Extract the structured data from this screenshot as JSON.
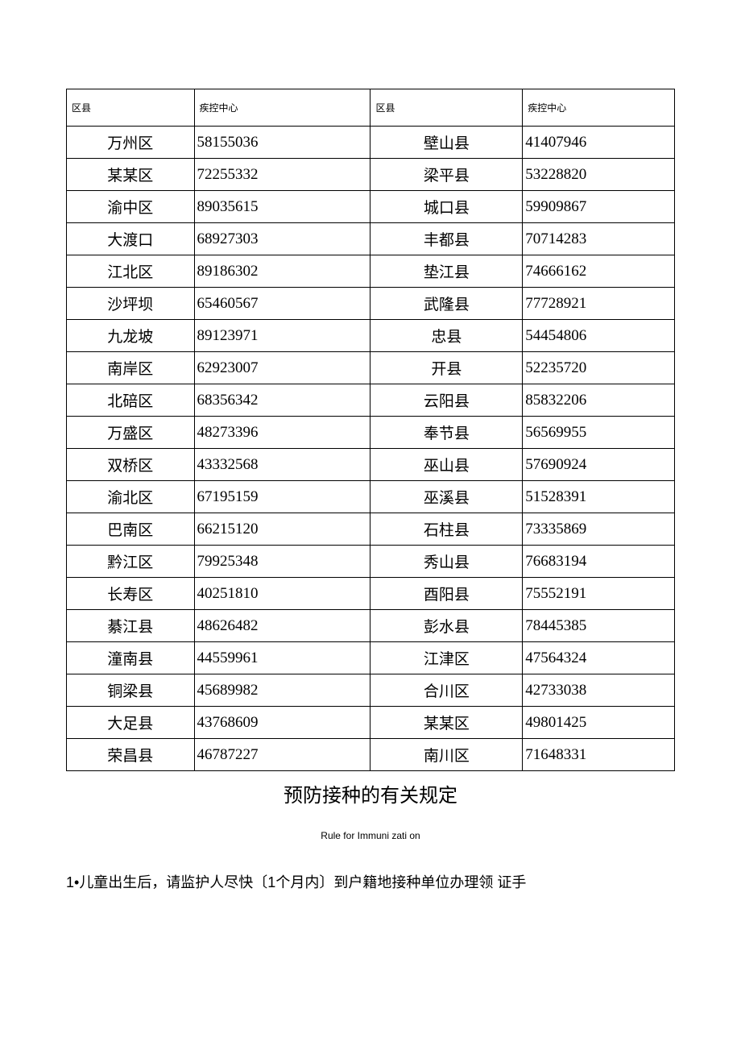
{
  "table": {
    "columns": [
      "区县",
      "疾控中心",
      "区县",
      "疾控中心"
    ],
    "header_fontsize": 12,
    "body_fontsize": 19,
    "border_color": "#000000",
    "background_color": "#ffffff",
    "column_widths_pct": [
      21,
      29,
      25,
      25
    ],
    "rows": [
      {
        "d1": "万州区",
        "n1": "58155036",
        "d2": "壁山县",
        "n2": "41407946"
      },
      {
        "d1": "某某区",
        "n1": "72255332",
        "d2": "梁平县",
        "n2": "53228820"
      },
      {
        "d1": "渝中区",
        "n1": "89035615",
        "d2": "城口县",
        "n2": "59909867"
      },
      {
        "d1": "大渡口",
        "n1": "68927303",
        "d2": "丰都县",
        "n2": "70714283"
      },
      {
        "d1": "江北区",
        "n1": "89186302",
        "d2": "垫江县",
        "n2": "74666162"
      },
      {
        "d1": "沙坪坝",
        "n1": "65460567",
        "d2": "武隆县",
        "n2": "77728921"
      },
      {
        "d1": "九龙坡",
        "n1": "89123971",
        "d2": "忠县",
        "n2": "54454806"
      },
      {
        "d1": "南岸区",
        "n1": "62923007",
        "d2": "开县",
        "n2": "52235720"
      },
      {
        "d1": "北碚区",
        "n1": "68356342",
        "d2": "云阳县",
        "n2": "85832206"
      },
      {
        "d1": "万盛区",
        "n1": "48273396",
        "d2": "奉节县",
        "n2": "56569955"
      },
      {
        "d1": "双桥区",
        "n1": "43332568",
        "d2": "巫山县",
        "n2": "57690924"
      },
      {
        "d1": "渝北区",
        "n1": "67195159",
        "d2": "巫溪县",
        "n2": "51528391"
      },
      {
        "d1": "巴南区",
        "n1": "66215120",
        "d2": "石柱县",
        "n2": "73335869"
      },
      {
        "d1": "黔江区",
        "n1": "79925348",
        "d2": "秀山县",
        "n2": "76683194"
      },
      {
        "d1": "长寿区",
        "n1": "40251810",
        "d2": "酉阳县",
        "n2": "75552191"
      },
      {
        "d1": "綦江县",
        "n1": "48626482",
        "d2": "彭水县",
        "n2": "78445385"
      },
      {
        "d1": "潼南县",
        "n1": "44559961",
        "d2": "江津区",
        "n2": "47564324"
      },
      {
        "d1": "铜梁县",
        "n1": "45689982",
        "d2": "合川区",
        "n2": "42733038"
      },
      {
        "d1": "大足县",
        "n1": "43768609",
        "d2": "某某区",
        "n2": "49801425"
      },
      {
        "d1": "荣昌县",
        "n1": "46787227",
        "d2": "南川区",
        "n2": "71648331"
      }
    ]
  },
  "heading": {
    "text": "预防接种的有关规定",
    "fontsize": 24,
    "color": "#000000"
  },
  "subheading": {
    "text": "Rule for Immuni zati on",
    "fontsize": 12,
    "color": "#000000"
  },
  "body_text": {
    "text": "1•儿童出生后，请监护人尽快〔1个月内〕到户籍地接种单位办理领 证手",
    "fontsize": 18,
    "color": "#000000"
  }
}
